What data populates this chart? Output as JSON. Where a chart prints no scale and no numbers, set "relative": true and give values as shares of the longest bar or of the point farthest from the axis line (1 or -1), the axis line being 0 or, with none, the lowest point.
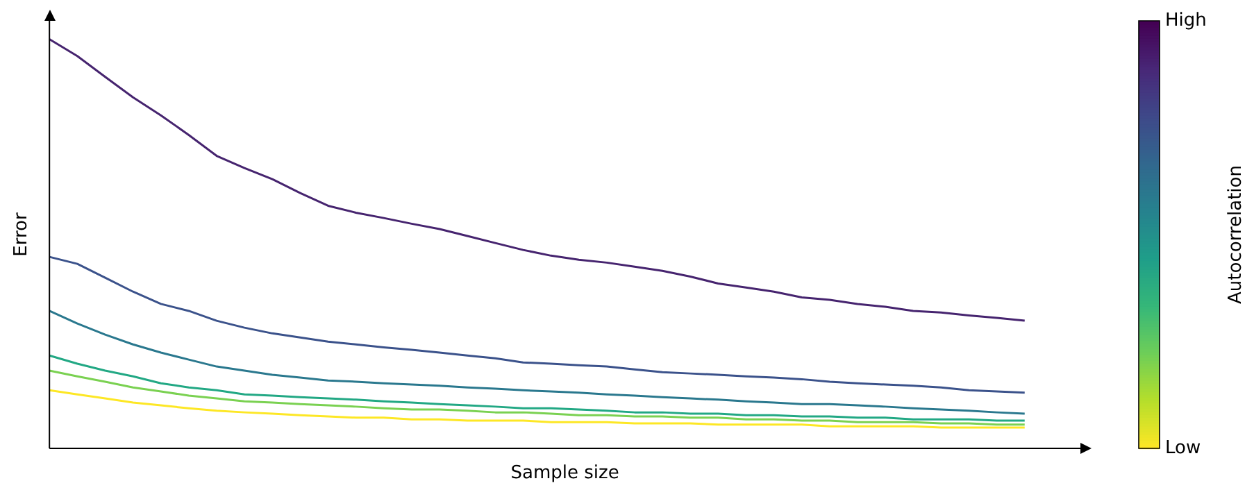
{
  "chart_data": {
    "type": "line",
    "relative": true,
    "xlabel": "Sample size",
    "ylabel": "Error",
    "clabel": "Autocorrelation",
    "clim": [
      0,
      1
    ],
    "cticks": [
      {
        "value": 0,
        "label": "Low"
      },
      {
        "value": 1,
        "label": "High"
      }
    ],
    "categories": [
      null,
      null,
      null,
      null,
      null,
      null,
      null,
      null,
      null,
      null,
      null,
      null,
      null,
      null,
      null,
      null,
      null,
      null,
      null,
      null,
      null,
      null,
      null,
      null,
      null,
      null,
      null,
      null,
      null,
      null,
      null,
      null,
      null,
      null,
      null,
      null,
      null,
      null
    ],
    "grid": false,
    "legend": false,
    "marker": "none",
    "line_style": "solid",
    "series": [
      {
        "color": "#fde725",
        "values": [
          0.142,
          0.132,
          0.122,
          0.112,
          0.105,
          0.098,
          0.092,
          0.088,
          0.085,
          0.081,
          0.078,
          0.075,
          0.075,
          0.071,
          0.071,
          0.068,
          0.068,
          0.068,
          0.064,
          0.064,
          0.064,
          0.061,
          0.061,
          0.061,
          0.058,
          0.058,
          0.058,
          0.058,
          0.054,
          0.054,
          0.054,
          0.054,
          0.051,
          0.051,
          0.051,
          0.051,
          null,
          null
        ]
      },
      {
        "color": "#7ad151",
        "values": [
          0.19,
          0.176,
          0.163,
          0.149,
          0.139,
          0.129,
          0.122,
          0.115,
          0.112,
          0.108,
          0.105,
          0.102,
          0.098,
          0.095,
          0.095,
          0.092,
          0.088,
          0.088,
          0.085,
          0.081,
          0.081,
          0.078,
          0.078,
          0.075,
          0.075,
          0.071,
          0.071,
          0.068,
          0.068,
          0.064,
          0.064,
          0.064,
          0.061,
          0.061,
          0.058,
          0.058,
          null,
          null
        ]
      },
      {
        "color": "#22a884",
        "values": [
          0.227,
          0.207,
          0.19,
          0.176,
          0.159,
          0.149,
          0.142,
          0.132,
          0.129,
          0.125,
          0.122,
          0.119,
          0.115,
          0.112,
          0.108,
          0.105,
          0.102,
          0.098,
          0.098,
          0.095,
          0.092,
          0.088,
          0.088,
          0.085,
          0.085,
          0.081,
          0.081,
          0.078,
          0.078,
          0.075,
          0.075,
          0.071,
          0.071,
          0.071,
          0.068,
          0.068,
          null,
          null
        ]
      },
      {
        "color": "#2a788e",
        "values": [
          0.336,
          0.305,
          0.278,
          0.254,
          0.234,
          0.217,
          0.2,
          0.19,
          0.18,
          0.173,
          0.166,
          0.163,
          0.159,
          0.156,
          0.153,
          0.149,
          0.146,
          0.142,
          0.139,
          0.136,
          0.132,
          0.129,
          0.125,
          0.122,
          0.119,
          0.115,
          0.112,
          0.108,
          0.108,
          0.105,
          0.102,
          0.098,
          0.095,
          0.092,
          0.088,
          0.085,
          null,
          null
        ]
      },
      {
        "color": "#3b528b",
        "values": [
          0.468,
          0.451,
          0.417,
          0.383,
          0.353,
          0.336,
          0.312,
          0.295,
          0.281,
          0.271,
          0.261,
          0.254,
          0.247,
          0.241,
          0.234,
          0.227,
          0.22,
          0.21,
          0.207,
          0.203,
          0.2,
          0.193,
          0.186,
          0.183,
          0.18,
          0.176,
          0.173,
          0.169,
          0.163,
          0.159,
          0.156,
          0.153,
          0.149,
          0.142,
          0.139,
          0.136,
          null,
          null
        ]
      },
      {
        "color": "#46246f",
        "values": [
          1.0,
          0.959,
          0.908,
          0.858,
          0.814,
          0.766,
          0.715,
          0.685,
          0.658,
          0.624,
          0.593,
          0.576,
          0.563,
          0.549,
          0.536,
          0.519,
          0.502,
          0.485,
          0.471,
          0.461,
          0.454,
          0.444,
          0.434,
          0.42,
          0.403,
          0.393,
          0.383,
          0.369,
          0.363,
          0.353,
          0.346,
          0.336,
          0.332,
          0.325,
          0.319,
          0.312,
          null,
          null
        ]
      }
    ]
  }
}
